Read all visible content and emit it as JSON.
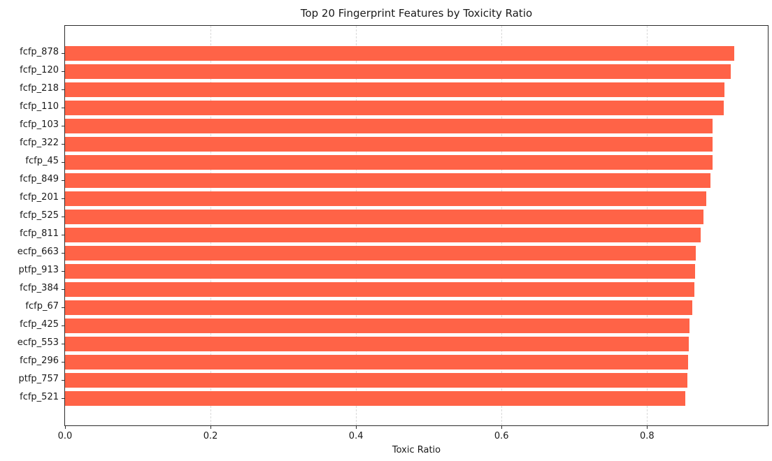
{
  "figure": {
    "background_color": "#ffffff"
  },
  "chart_data": {
    "type": "bar",
    "orientation": "horizontal",
    "title": "Top 20 Fingerprint Features by Toxicity Ratio",
    "xlabel": "Toxic Ratio",
    "ylabel": "",
    "categories": [
      "fcfp_878",
      "fcfp_120",
      "fcfp_218",
      "fcfp_110",
      "fcfp_103",
      "fcfp_322",
      "fcfp_45",
      "fcfp_849",
      "fcfp_201",
      "fcfp_525",
      "fcfp_811",
      "ecfp_663",
      "ptfp_913",
      "fcfp_384",
      "fcfp_67",
      "fcfp_425",
      "ecfp_553",
      "fcfp_296",
      "ptfp_757",
      "fcfp_521"
    ],
    "values": [
      0.92,
      0.915,
      0.906,
      0.905,
      0.89,
      0.89,
      0.89,
      0.887,
      0.881,
      0.878,
      0.874,
      0.867,
      0.866,
      0.865,
      0.862,
      0.858,
      0.857,
      0.856,
      0.855,
      0.853
    ],
    "xlim": [
      0,
      0.966
    ],
    "xticks": [
      0.0,
      0.2,
      0.4,
      0.6,
      0.8
    ],
    "xtick_labels": [
      "0.0",
      "0.2",
      "0.4",
      "0.6",
      "0.8"
    ],
    "grid": {
      "axis": "x",
      "line_style": "dashed",
      "color": "#d8d8d8"
    },
    "bar_color": "#FF6347",
    "legend": "none",
    "value_axis_position": "bottom",
    "category_axis_position": "left"
  }
}
